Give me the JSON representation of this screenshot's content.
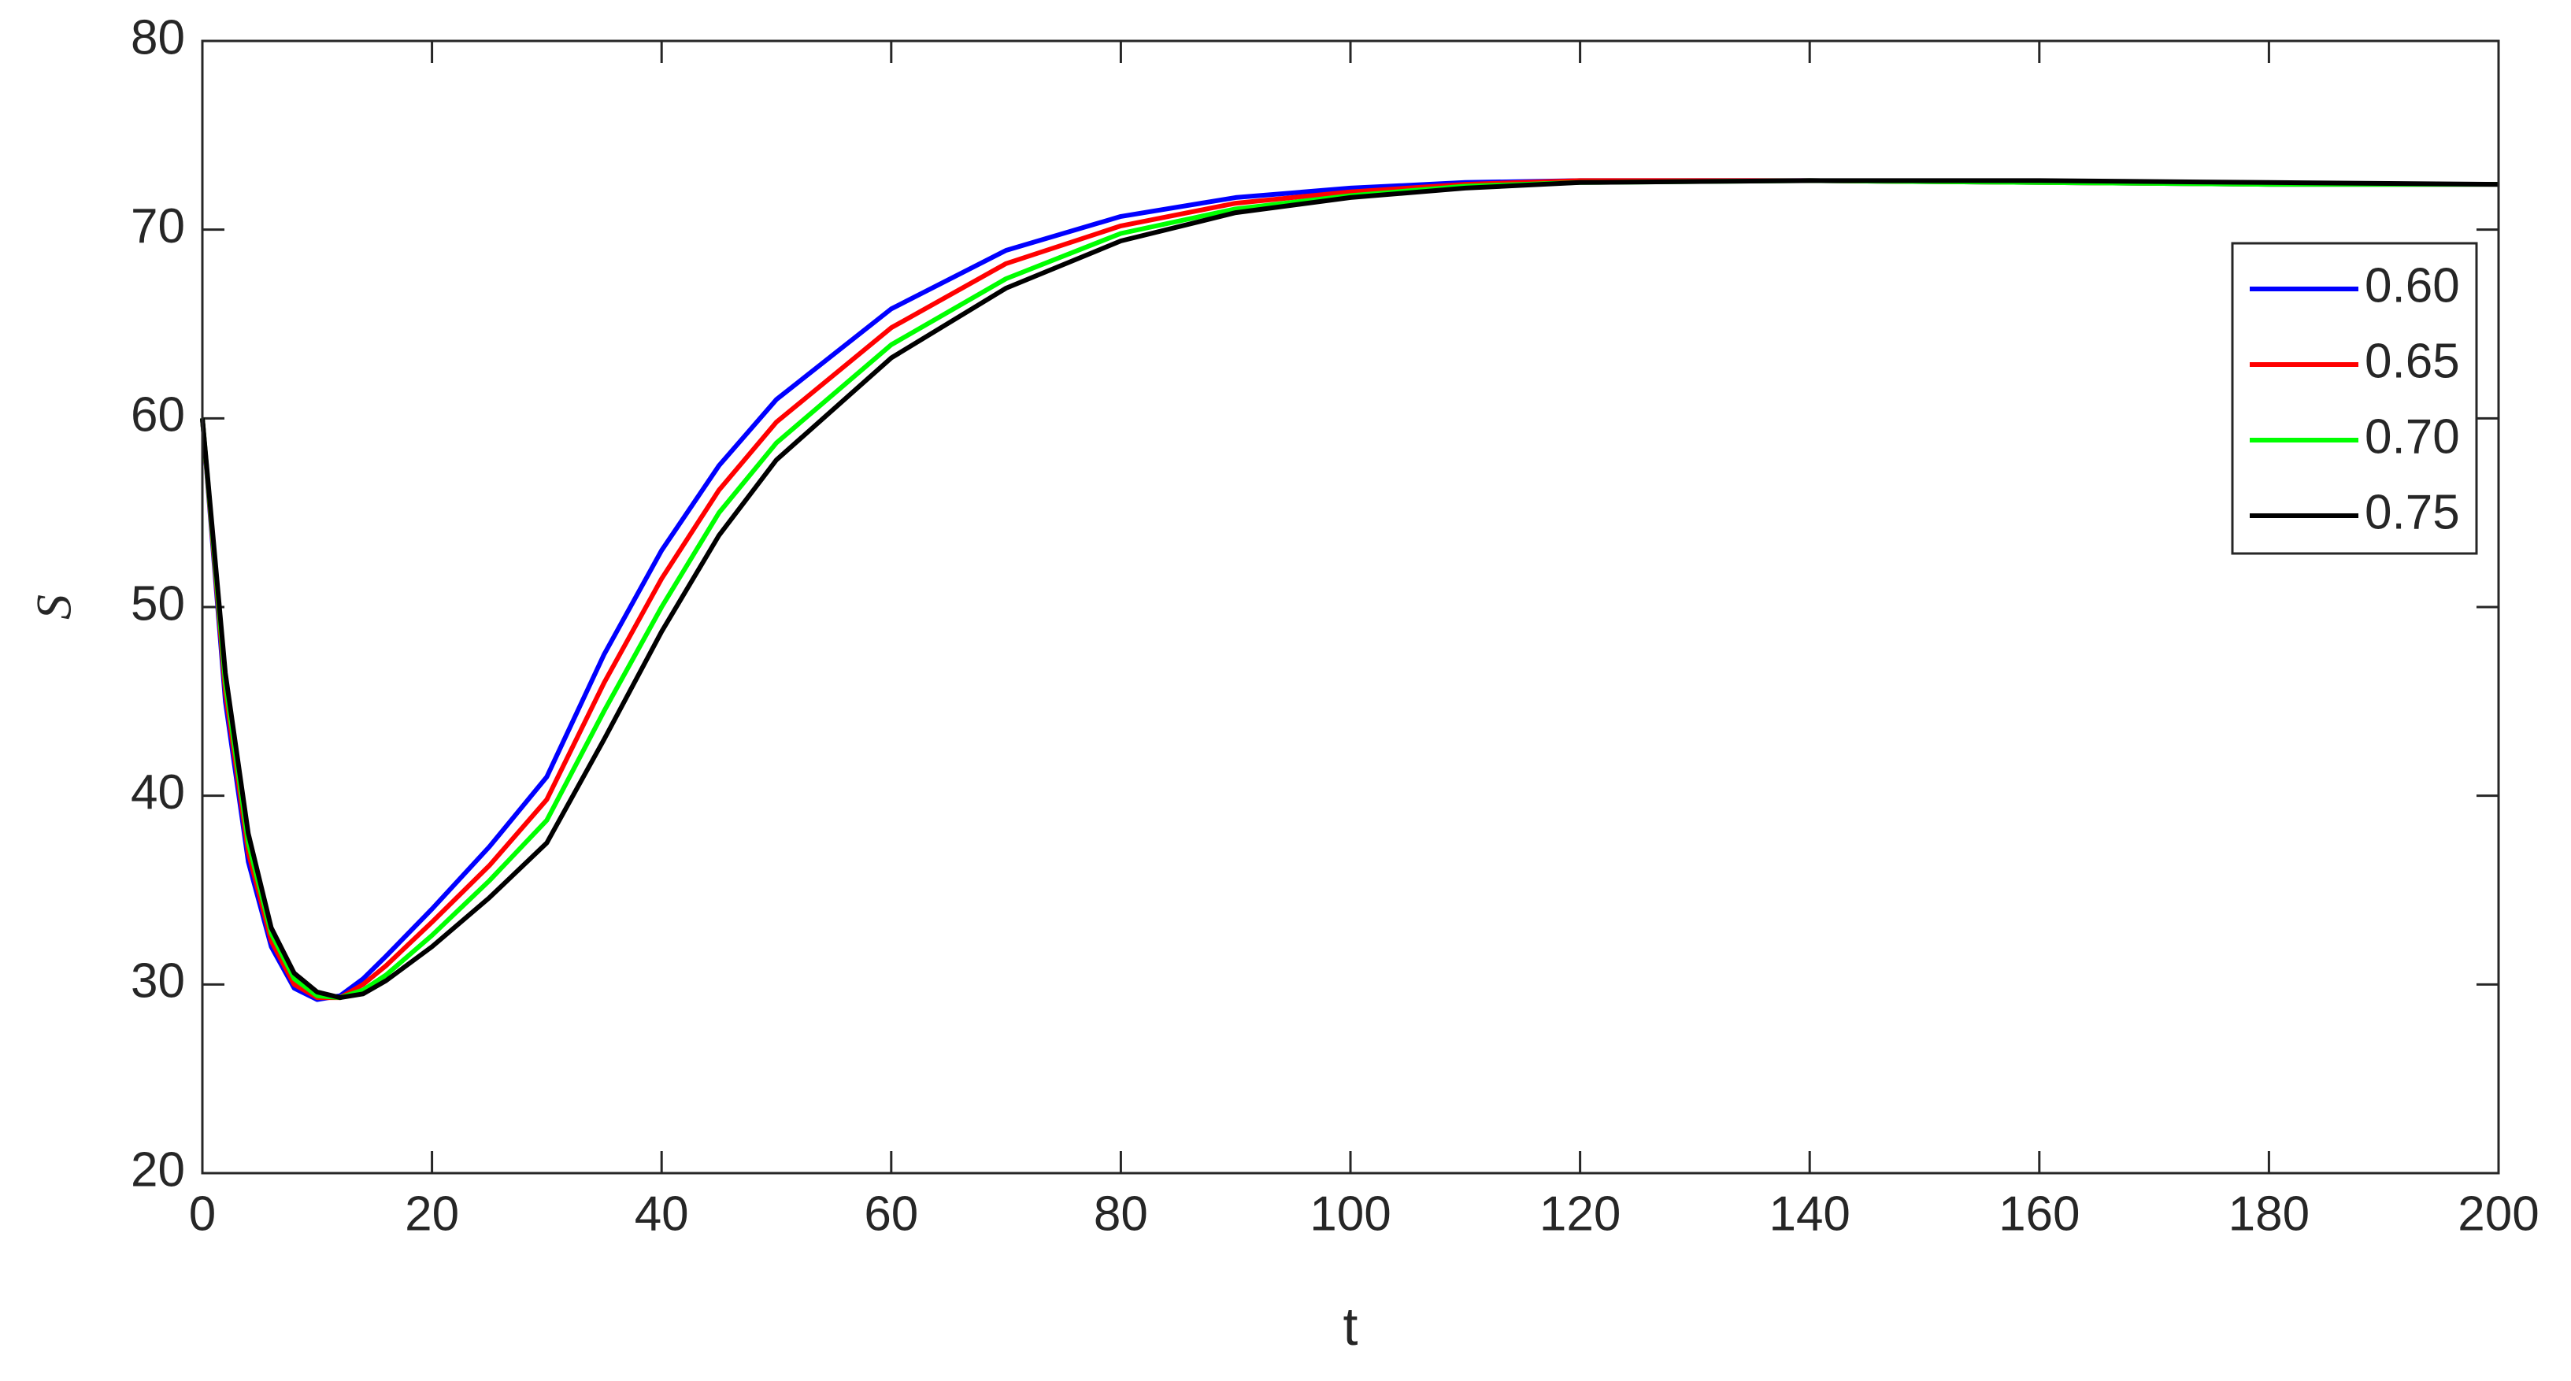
{
  "chart_data": {
    "type": "line",
    "x_label": "t",
    "y_label": "S",
    "x": [
      0,
      2,
      4,
      6,
      8,
      10,
      12,
      14,
      16,
      20,
      25,
      30,
      35,
      40,
      45,
      50,
      60,
      70,
      80,
      90,
      100,
      110,
      120,
      140,
      160,
      180,
      200
    ],
    "series": [
      {
        "name": "0.60",
        "color": "#0000ff",
        "values": [
          60,
          45,
          36.5,
          32,
          29.8,
          29.2,
          29.4,
          30.3,
          31.5,
          34,
          37.3,
          41,
          47.5,
          53,
          57.5,
          61,
          65.8,
          68.9,
          70.7,
          71.7,
          72.2,
          72.5,
          72.6,
          72.6,
          72.5,
          72.4,
          72.4
        ]
      },
      {
        "name": "0.65",
        "color": "#ff0000",
        "values": [
          60,
          45.5,
          37,
          32.3,
          30,
          29.3,
          29.3,
          30,
          31,
          33.3,
          36.3,
          39.8,
          46,
          51.5,
          56.2,
          59.8,
          64.8,
          68.2,
          70.2,
          71.4,
          72,
          72.4,
          72.6,
          72.6,
          72.5,
          72.4,
          72.4
        ]
      },
      {
        "name": "0.70",
        "color": "#00ff00",
        "values": [
          60,
          46,
          37.5,
          32.7,
          30.3,
          29.4,
          29.3,
          29.7,
          30.5,
          32.6,
          35.5,
          38.7,
          44.5,
          50,
          55,
          58.7,
          63.9,
          67.4,
          69.8,
          71.1,
          71.8,
          72.3,
          72.5,
          72.6,
          72.5,
          72.4,
          72.4
        ]
      },
      {
        "name": "0.75",
        "color": "#000000",
        "values": [
          60,
          46.5,
          38,
          33,
          30.6,
          29.6,
          29.3,
          29.5,
          30.2,
          32,
          34.6,
          37.5,
          43,
          48.7,
          53.8,
          57.8,
          63.2,
          66.9,
          69.4,
          70.9,
          71.7,
          72.2,
          72.5,
          72.6,
          72.6,
          72.5,
          72.4
        ]
      }
    ],
    "xlim": [
      0,
      200
    ],
    "xticks": [
      0,
      20,
      40,
      60,
      80,
      100,
      120,
      140,
      160,
      180,
      200
    ],
    "ylim": [
      20,
      80
    ],
    "yticks": [
      20,
      30,
      40,
      50,
      60,
      70,
      80
    ],
    "grid": false,
    "legend": "upper right"
  }
}
